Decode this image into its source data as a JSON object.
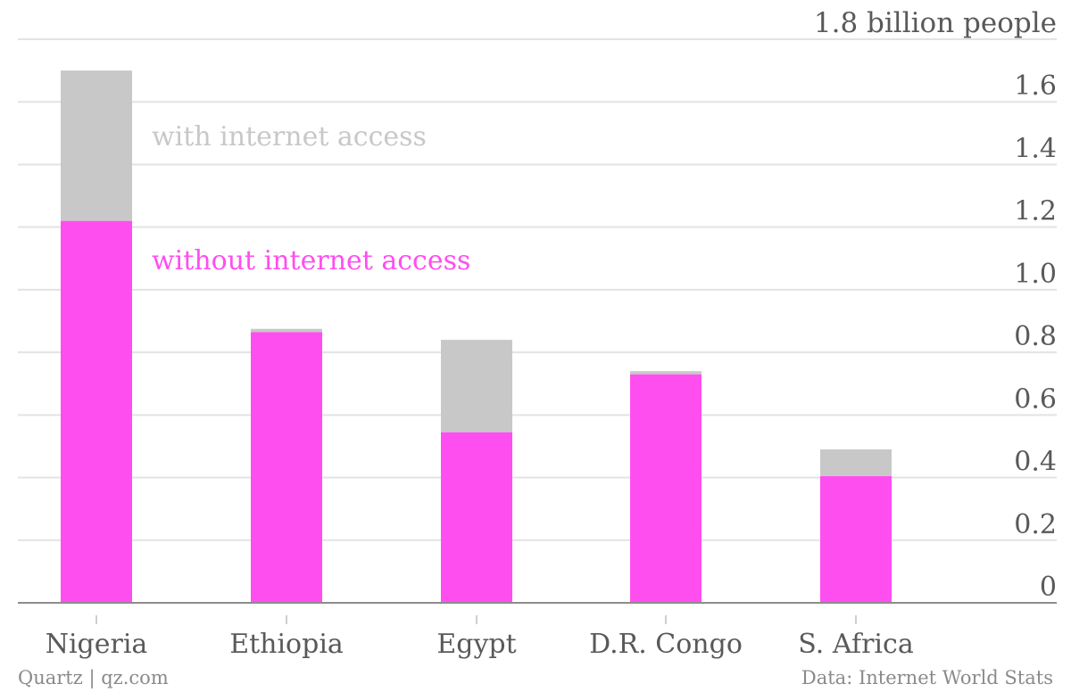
{
  "chart_data": {
    "type": "bar",
    "stacked": true,
    "categories": [
      "Nigeria",
      "Ethiopia",
      "Egypt",
      "D.R. Congo",
      "S. Africa"
    ],
    "series": [
      {
        "name": "without internet access",
        "color": "#ff4ef0",
        "values": [
          1.22,
          0.865,
          0.545,
          0.73,
          0.405
        ]
      },
      {
        "name": "with internet access",
        "color": "#c8c8c8",
        "values": [
          0.48,
          0.01,
          0.295,
          0.01,
          0.085
        ]
      }
    ],
    "ylim": [
      0,
      1.8
    ],
    "yticks": [
      "0",
      "0.2",
      "0.4",
      "0.6",
      "0.8",
      "1.0",
      "1.2",
      "1.4",
      "1.6"
    ],
    "ymax_label": "1.8 billion people",
    "gridlines": true,
    "axis_side": "right"
  },
  "footer": {
    "source_left": "Quartz | qz.com",
    "source_right": "Data: Internet World Stats"
  }
}
